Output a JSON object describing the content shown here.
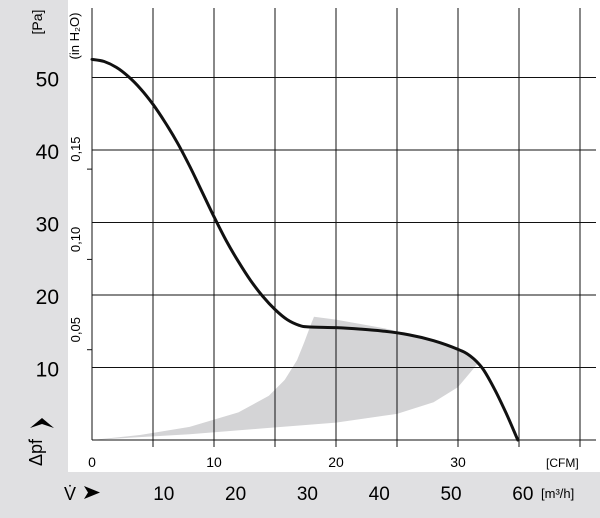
{
  "chart_data": {
    "type": "line",
    "title": "",
    "xlabel_cfm": "[CFM]",
    "xlabel_m3h": "[m³/h]",
    "ylabel_pa": "[Pa]",
    "ylabel_inh2o": "(in H₂O)",
    "y_symbol": "Δpf",
    "x_symbol": "V̇",
    "x_axis_cfm": {
      "range": [
        0,
        35
      ],
      "ticks": [
        0,
        10,
        20,
        30
      ]
    },
    "x_axis_m3h": {
      "ticks": [
        10,
        20,
        30,
        40,
        50,
        60
      ]
    },
    "y_axis_pa": {
      "range": [
        0,
        55
      ],
      "ticks": [
        10,
        20,
        30,
        40,
        50
      ]
    },
    "y_axis_inh2o": {
      "ticks": [
        "0,05",
        "0,10",
        "0,15"
      ]
    },
    "series": [
      {
        "points_cfm_pa": [
          [
            0,
            52.5
          ],
          [
            1,
            52.2
          ],
          [
            2,
            51.4
          ],
          [
            3,
            50.1
          ],
          [
            4,
            48.4
          ],
          [
            5,
            46.3
          ],
          [
            6,
            43.8
          ],
          [
            7,
            41.0
          ],
          [
            8,
            37.8
          ],
          [
            9,
            34.3
          ],
          [
            10,
            30.8
          ],
          [
            11,
            27.5
          ],
          [
            12,
            24.6
          ],
          [
            13,
            22.0
          ],
          [
            14,
            19.8
          ],
          [
            15,
            18.0
          ],
          [
            16,
            16.6
          ],
          [
            17,
            15.8
          ],
          [
            17.7,
            15.6
          ],
          [
            20,
            15.5
          ],
          [
            22,
            15.3
          ],
          [
            24,
            15.0
          ],
          [
            26,
            14.5
          ],
          [
            28,
            13.7
          ],
          [
            30,
            12.5
          ],
          [
            31,
            11.6
          ],
          [
            32,
            9.9
          ],
          [
            33,
            7.0
          ],
          [
            34,
            3.5
          ],
          [
            34.9,
            0
          ]
        ]
      }
    ],
    "operating_range_polygon_cfm_pa": [
      [
        0,
        0
      ],
      [
        8,
        0.8
      ],
      [
        14,
        1.6
      ],
      [
        20,
        2.4
      ],
      [
        25,
        3.6
      ],
      [
        28,
        5.2
      ],
      [
        30,
        7.3
      ],
      [
        31.6,
        10.5
      ],
      [
        31.5,
        11.2
      ],
      [
        30,
        12.4
      ],
      [
        28,
        13.6
      ],
      [
        26,
        14.6
      ],
      [
        24,
        15.4
      ],
      [
        22,
        16.0
      ],
      [
        20,
        16.6
      ],
      [
        18.2,
        17.0
      ],
      [
        18,
        16.2
      ],
      [
        17.4,
        13.5
      ],
      [
        16.8,
        11.0
      ],
      [
        15.8,
        8.3
      ],
      [
        14.5,
        6.1
      ],
      [
        12,
        3.8
      ],
      [
        8,
        1.8
      ],
      [
        4,
        0.7
      ]
    ],
    "grid": true,
    "colors": {
      "curve": "#111111",
      "operating_range": "#d4d4d6",
      "axis_band": "#e0e0e2",
      "grid": "#111111"
    }
  }
}
